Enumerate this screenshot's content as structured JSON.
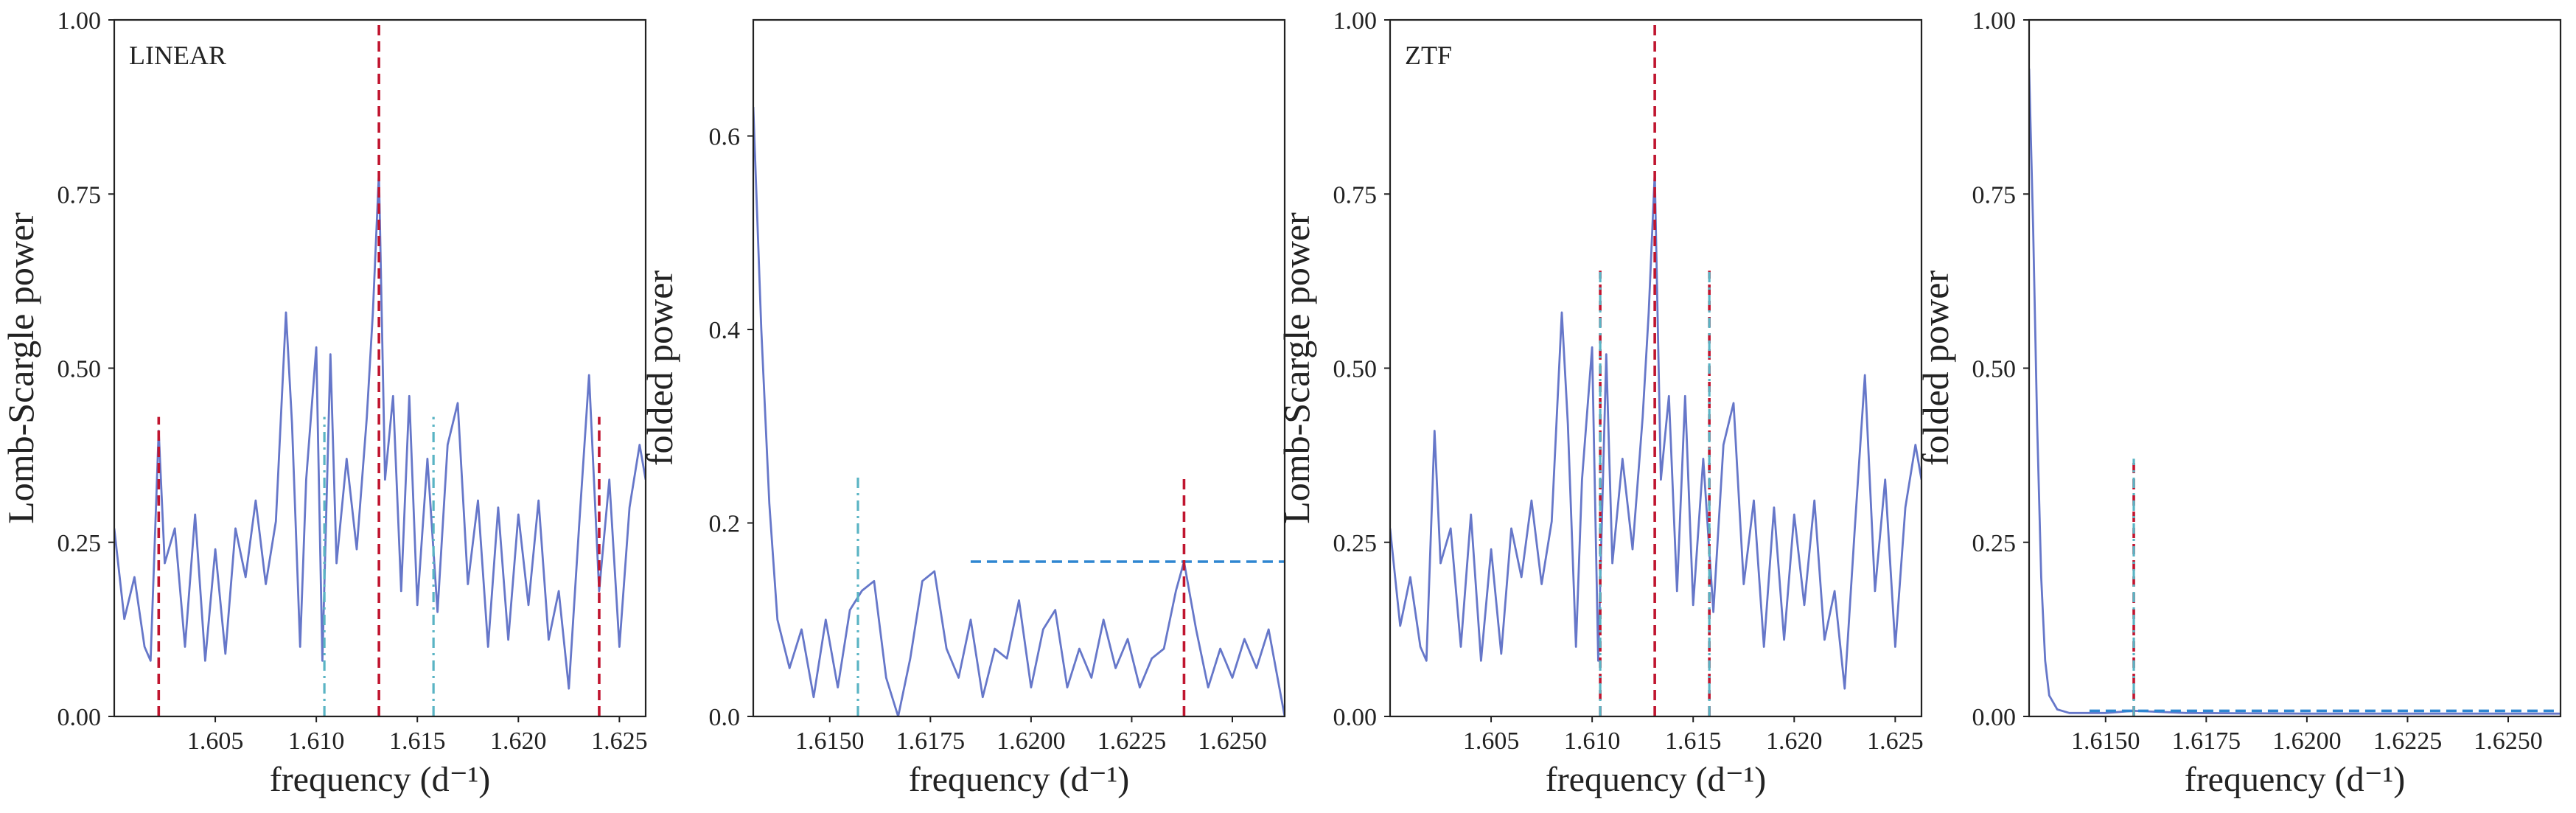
{
  "figure": {
    "description_colors": {
      "line": "#6677c9",
      "red_dash": "#c0152f",
      "cyan_dashdot": "#5ab4c4",
      "blue_dash": "#2e86d1"
    }
  },
  "chart_data": [
    {
      "type": "line",
      "annotation": "LINEAR",
      "xlabel": "frequency (d⁻¹)",
      "ylabel": "Lomb-Scargle power",
      "xlim": [
        1.6,
        1.6263
      ],
      "ylim": [
        0.0,
        1.0
      ],
      "xticks": [
        1.605,
        1.61,
        1.615,
        1.62,
        1.625
      ],
      "xtick_labels": [
        "1.605",
        "1.610",
        "1.615",
        "1.620",
        "1.625"
      ],
      "yticks": [
        0.0,
        0.25,
        0.5,
        0.75,
        1.0
      ],
      "ytick_labels": [
        "0.00",
        "0.25",
        "0.50",
        "0.75",
        "1.00"
      ],
      "series": [
        {
          "points": [
            [
              1.6,
              0.27
            ],
            [
              1.6005,
              0.14
            ],
            [
              1.601,
              0.2
            ],
            [
              1.6015,
              0.1
            ],
            [
              1.6018,
              0.08
            ],
            [
              1.6022,
              0.41
            ],
            [
              1.6025,
              0.22
            ],
            [
              1.603,
              0.27
            ],
            [
              1.6035,
              0.1
            ],
            [
              1.604,
              0.29
            ],
            [
              1.6045,
              0.08
            ],
            [
              1.605,
              0.24
            ],
            [
              1.6055,
              0.09
            ],
            [
              1.606,
              0.27
            ],
            [
              1.6065,
              0.2
            ],
            [
              1.607,
              0.31
            ],
            [
              1.6075,
              0.19
            ],
            [
              1.608,
              0.28
            ],
            [
              1.6085,
              0.58
            ],
            [
              1.6088,
              0.42
            ],
            [
              1.6092,
              0.1
            ],
            [
              1.6095,
              0.34
            ],
            [
              1.61,
              0.53
            ],
            [
              1.6103,
              0.08
            ],
            [
              1.6107,
              0.52
            ],
            [
              1.611,
              0.22
            ],
            [
              1.6115,
              0.37
            ],
            [
              1.612,
              0.24
            ],
            [
              1.6125,
              0.43
            ],
            [
              1.6128,
              0.58
            ],
            [
              1.6131,
              0.78
            ],
            [
              1.6134,
              0.34
            ],
            [
              1.6138,
              0.46
            ],
            [
              1.6142,
              0.18
            ],
            [
              1.6146,
              0.46
            ],
            [
              1.615,
              0.16
            ],
            [
              1.6155,
              0.37
            ],
            [
              1.616,
              0.15
            ],
            [
              1.6165,
              0.39
            ],
            [
              1.617,
              0.45
            ],
            [
              1.6175,
              0.19
            ],
            [
              1.618,
              0.31
            ],
            [
              1.6185,
              0.1
            ],
            [
              1.619,
              0.3
            ],
            [
              1.6195,
              0.11
            ],
            [
              1.62,
              0.29
            ],
            [
              1.6205,
              0.16
            ],
            [
              1.621,
              0.31
            ],
            [
              1.6215,
              0.11
            ],
            [
              1.622,
              0.18
            ],
            [
              1.6225,
              0.04
            ],
            [
              1.623,
              0.27
            ],
            [
              1.6235,
              0.49
            ],
            [
              1.624,
              0.18
            ],
            [
              1.6245,
              0.34
            ],
            [
              1.625,
              0.1
            ],
            [
              1.6255,
              0.3
            ],
            [
              1.626,
              0.39
            ],
            [
              1.6263,
              0.34
            ]
          ]
        }
      ],
      "vlines": [
        {
          "x": 1.6131,
          "y0": 0.0,
          "y1": 1.0,
          "style": "red-dash"
        },
        {
          "x": 1.6022,
          "y0": 0.0,
          "y1": 0.43,
          "style": "red-dash"
        },
        {
          "x": 1.624,
          "y0": 0.0,
          "y1": 0.43,
          "style": "red-dash"
        },
        {
          "x": 1.6104,
          "y0": 0.0,
          "y1": 0.43,
          "style": "cyan-dashdot"
        },
        {
          "x": 1.6158,
          "y0": 0.0,
          "y1": 0.43,
          "style": "cyan-dashdot"
        }
      ],
      "hlines": []
    },
    {
      "type": "line",
      "annotation": "",
      "xlabel": "frequency (d⁻¹)",
      "ylabel": "folded power",
      "xlim": [
        1.6131,
        1.6263
      ],
      "ylim": [
        0.0,
        0.72
      ],
      "xticks": [
        1.615,
        1.6175,
        1.62,
        1.6225,
        1.625
      ],
      "xtick_labels": [
        "1.6150",
        "1.6175",
        "1.6200",
        "1.6225",
        "1.6250"
      ],
      "yticks": [
        0.0,
        0.2,
        0.4,
        0.6
      ],
      "ytick_labels": [
        "0.0",
        "0.2",
        "0.4",
        "0.6"
      ],
      "series": [
        {
          "points": [
            [
              1.6131,
              0.63
            ],
            [
              1.6133,
              0.4
            ],
            [
              1.6135,
              0.22
            ],
            [
              1.6137,
              0.1
            ],
            [
              1.614,
              0.05
            ],
            [
              1.6143,
              0.09
            ],
            [
              1.6146,
              0.02
            ],
            [
              1.6149,
              0.1
            ],
            [
              1.6152,
              0.03
            ],
            [
              1.6155,
              0.11
            ],
            [
              1.6158,
              0.13
            ],
            [
              1.6161,
              0.14
            ],
            [
              1.6164,
              0.04
            ],
            [
              1.6167,
              0.0
            ],
            [
              1.617,
              0.06
            ],
            [
              1.6173,
              0.14
            ],
            [
              1.6176,
              0.15
            ],
            [
              1.6179,
              0.07
            ],
            [
              1.6182,
              0.04
            ],
            [
              1.6185,
              0.1
            ],
            [
              1.6188,
              0.02
            ],
            [
              1.6191,
              0.07
            ],
            [
              1.6194,
              0.06
            ],
            [
              1.6197,
              0.12
            ],
            [
              1.62,
              0.03
            ],
            [
              1.6203,
              0.09
            ],
            [
              1.6206,
              0.11
            ],
            [
              1.6209,
              0.03
            ],
            [
              1.6212,
              0.07
            ],
            [
              1.6215,
              0.04
            ],
            [
              1.6218,
              0.1
            ],
            [
              1.6221,
              0.05
            ],
            [
              1.6224,
              0.08
            ],
            [
              1.6227,
              0.03
            ],
            [
              1.623,
              0.06
            ],
            [
              1.6233,
              0.07
            ],
            [
              1.6236,
              0.13
            ],
            [
              1.6238,
              0.16
            ],
            [
              1.6241,
              0.09
            ],
            [
              1.6244,
              0.03
            ],
            [
              1.6247,
              0.07
            ],
            [
              1.625,
              0.04
            ],
            [
              1.6253,
              0.08
            ],
            [
              1.6256,
              0.05
            ],
            [
              1.6259,
              0.09
            ],
            [
              1.6263,
              0.0
            ]
          ]
        }
      ],
      "vlines": [
        {
          "x": 1.6157,
          "y0": 0.0,
          "y1": 0.25,
          "style": "cyan-dashdot"
        },
        {
          "x": 1.6238,
          "y0": 0.0,
          "y1": 0.25,
          "style": "red-dash"
        }
      ],
      "hlines": [
        {
          "y": 0.16,
          "x0": 1.6185,
          "x1": 1.6263,
          "style": "blue-dash"
        }
      ]
    },
    {
      "type": "line",
      "annotation": "ZTF",
      "xlabel": "frequency (d⁻¹)",
      "ylabel": "Lomb-Scargle power",
      "xlim": [
        1.6,
        1.6263
      ],
      "ylim": [
        0.0,
        1.0
      ],
      "xticks": [
        1.605,
        1.61,
        1.615,
        1.62,
        1.625
      ],
      "xtick_labels": [
        "1.605",
        "1.610",
        "1.615",
        "1.620",
        "1.625"
      ],
      "yticks": [
        0.0,
        0.25,
        0.5,
        0.75,
        1.0
      ],
      "ytick_labels": [
        "0.00",
        "0.25",
        "0.50",
        "0.75",
        "1.00"
      ],
      "series": [
        {
          "points": [
            [
              1.6,
              0.27
            ],
            [
              1.6005,
              0.13
            ],
            [
              1.601,
              0.2
            ],
            [
              1.6015,
              0.1
            ],
            [
              1.6018,
              0.08
            ],
            [
              1.6022,
              0.41
            ],
            [
              1.6025,
              0.22
            ],
            [
              1.603,
              0.27
            ],
            [
              1.6035,
              0.1
            ],
            [
              1.604,
              0.29
            ],
            [
              1.6045,
              0.08
            ],
            [
              1.605,
              0.24
            ],
            [
              1.6055,
              0.09
            ],
            [
              1.606,
              0.27
            ],
            [
              1.6065,
              0.2
            ],
            [
              1.607,
              0.31
            ],
            [
              1.6075,
              0.19
            ],
            [
              1.608,
              0.28
            ],
            [
              1.6085,
              0.58
            ],
            [
              1.6088,
              0.42
            ],
            [
              1.6092,
              0.1
            ],
            [
              1.6095,
              0.34
            ],
            [
              1.61,
              0.53
            ],
            [
              1.6103,
              0.08
            ],
            [
              1.6107,
              0.52
            ],
            [
              1.611,
              0.22
            ],
            [
              1.6115,
              0.37
            ],
            [
              1.612,
              0.24
            ],
            [
              1.6125,
              0.43
            ],
            [
              1.6128,
              0.58
            ],
            [
              1.6131,
              0.78
            ],
            [
              1.6134,
              0.34
            ],
            [
              1.6138,
              0.46
            ],
            [
              1.6142,
              0.18
            ],
            [
              1.6146,
              0.46
            ],
            [
              1.615,
              0.16
            ],
            [
              1.6155,
              0.37
            ],
            [
              1.616,
              0.15
            ],
            [
              1.6165,
              0.39
            ],
            [
              1.617,
              0.45
            ],
            [
              1.6175,
              0.19
            ],
            [
              1.618,
              0.31
            ],
            [
              1.6185,
              0.1
            ],
            [
              1.619,
              0.3
            ],
            [
              1.6195,
              0.11
            ],
            [
              1.62,
              0.29
            ],
            [
              1.6205,
              0.16
            ],
            [
              1.621,
              0.31
            ],
            [
              1.6215,
              0.11
            ],
            [
              1.622,
              0.18
            ],
            [
              1.6225,
              0.04
            ],
            [
              1.623,
              0.27
            ],
            [
              1.6235,
              0.49
            ],
            [
              1.624,
              0.18
            ],
            [
              1.6245,
              0.34
            ],
            [
              1.625,
              0.1
            ],
            [
              1.6255,
              0.3
            ],
            [
              1.626,
              0.39
            ],
            [
              1.6263,
              0.34
            ]
          ]
        }
      ],
      "vlines": [
        {
          "x": 1.6131,
          "y0": 0.0,
          "y1": 1.0,
          "style": "red-dash"
        },
        {
          "x": 1.6104,
          "y0": 0.0,
          "y1": 0.64,
          "style": "red-dash"
        },
        {
          "x": 1.6104,
          "y0": 0.0,
          "y1": 0.64,
          "style": "cyan-dashdot"
        },
        {
          "x": 1.6158,
          "y0": 0.0,
          "y1": 0.64,
          "style": "red-dash"
        },
        {
          "x": 1.6158,
          "y0": 0.0,
          "y1": 0.64,
          "style": "cyan-dashdot"
        }
      ],
      "hlines": []
    },
    {
      "type": "line",
      "annotation": "",
      "xlabel": "frequency (d⁻¹)",
      "ylabel": "folded power",
      "xlim": [
        1.6131,
        1.6263
      ],
      "ylim": [
        0.0,
        1.0
      ],
      "xticks": [
        1.615,
        1.6175,
        1.62,
        1.6225,
        1.625
      ],
      "xtick_labels": [
        "1.6150",
        "1.6175",
        "1.6200",
        "1.6225",
        "1.6250"
      ],
      "yticks": [
        0.0,
        0.25,
        0.5,
        0.75,
        1.0
      ],
      "ytick_labels": [
        "0.00",
        "0.25",
        "0.50",
        "0.75",
        "1.00"
      ],
      "series": [
        {
          "points": [
            [
              1.6131,
              0.93
            ],
            [
              1.6132,
              0.7
            ],
            [
              1.6133,
              0.42
            ],
            [
              1.6134,
              0.2
            ],
            [
              1.6135,
              0.08
            ],
            [
              1.6136,
              0.03
            ],
            [
              1.6138,
              0.01
            ],
            [
              1.6141,
              0.005
            ],
            [
              1.615,
              0.005
            ],
            [
              1.6157,
              0.008
            ],
            [
              1.617,
              0.005
            ],
            [
              1.62,
              0.004
            ],
            [
              1.623,
              0.004
            ],
            [
              1.6263,
              0.004
            ]
          ]
        }
      ],
      "vlines": [
        {
          "x": 1.6157,
          "y0": 0.0,
          "y1": 0.37,
          "style": "red-dash"
        },
        {
          "x": 1.6157,
          "y0": 0.0,
          "y1": 0.37,
          "style": "cyan-dashdot"
        }
      ],
      "hlines": [
        {
          "y": 0.008,
          "x0": 1.6146,
          "x1": 1.6263,
          "style": "blue-dash"
        }
      ]
    }
  ]
}
